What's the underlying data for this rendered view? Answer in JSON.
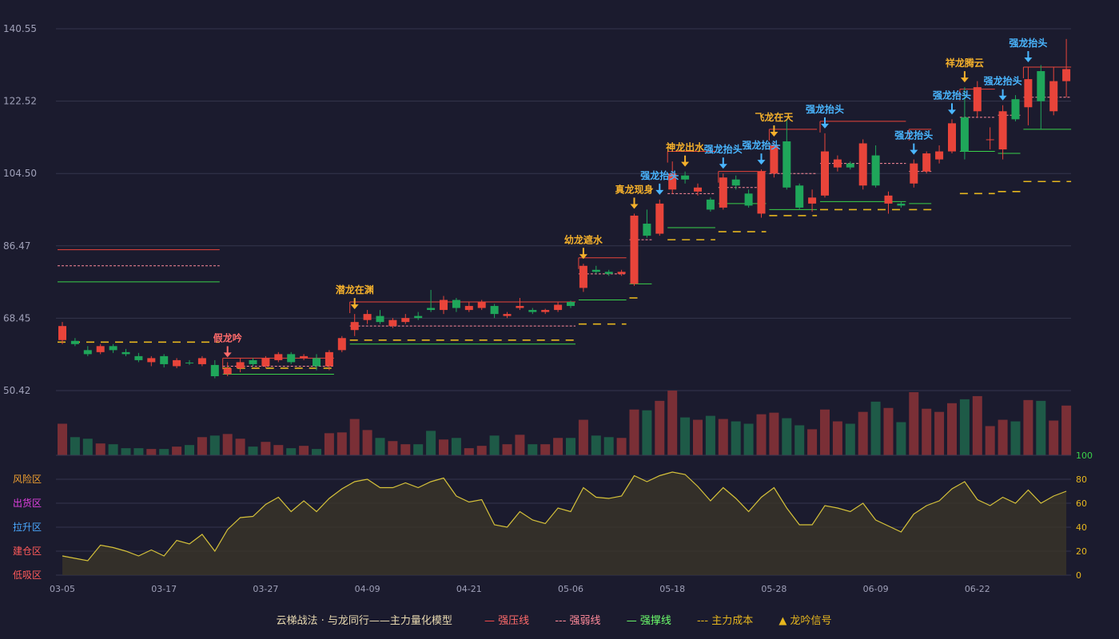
{
  "colors": {
    "background": "#1b1b2e",
    "up": "#e8443a",
    "down": "#1fa65a",
    "upVol": "#7a2f36",
    "downVol": "#1e5a47",
    "grid": "#35364d",
    "axisText": "#9fa0b8",
    "resist": "#e8443a",
    "weak": "#ff8a9a",
    "support": "#3ad14a",
    "cost": "#e6b61e",
    "signalBlue": "#4ab6ff",
    "signalGold": "#f5b12b",
    "signalRed": "#ff6b6b",
    "oscLine": "#d6c23a",
    "oscFill": "#3a3528"
  },
  "legend": {
    "title": "云梯战法 · 与龙同行——主力量化模型",
    "items": [
      {
        "label": "强压线",
        "symbol": "—",
        "color": "#ff4d4d"
      },
      {
        "label": "强弱线",
        "symbol": "---",
        "color": "#ff8a9a"
      },
      {
        "label": "强撑线",
        "symbol": "—",
        "color": "#6cff6c"
      },
      {
        "label": "主力成本",
        "symbol": "---",
        "color": "#e6b61e"
      },
      {
        "label": "龙吟信号",
        "symbol": "▲",
        "color": "#e6b61e"
      }
    ]
  },
  "zones": [
    {
      "label": "风险区",
      "color": "#f0a030"
    },
    {
      "label": "出货区",
      "color": "#e040e0"
    },
    {
      "label": "拉升区",
      "color": "#4aa8ff"
    },
    {
      "label": "建仓区",
      "color": "#ff5a5a"
    },
    {
      "label": "低吸区",
      "color": "#ff5a5a"
    }
  ],
  "chart_data": {
    "type": "candlestick",
    "price_axis": {
      "ticks": [
        "140.55",
        "122.52",
        "104.50",
        "86.47",
        "68.45",
        "50.42"
      ],
      "ylim": [
        50.42,
        140.55
      ]
    },
    "x_axis_ticks": [
      "03-05",
      "03-17",
      "03-27",
      "04-09",
      "04-21",
      "05-06",
      "05-18",
      "05-28",
      "06-09",
      "06-22"
    ],
    "osc_axis": {
      "ticks": [
        "100",
        "80",
        "60",
        "40",
        "20",
        "0"
      ],
      "ylim": [
        0,
        100
      ]
    },
    "candles": [
      [
        63.0,
        66.5,
        62.0,
        67.5,
        1,
        40
      ],
      [
        62.0,
        62.8,
        61.5,
        63.5,
        0,
        23
      ],
      [
        60.5,
        59.5,
        59.0,
        61.5,
        0,
        21
      ],
      [
        60.0,
        61.5,
        59.5,
        62.0,
        1,
        15
      ],
      [
        60.5,
        61.5,
        59.8,
        62.0,
        0,
        14
      ],
      [
        60.0,
        59.5,
        59.0,
        60.8,
        0,
        9
      ],
      [
        59.0,
        58.0,
        57.5,
        59.8,
        0,
        9
      ],
      [
        57.5,
        58.5,
        56.5,
        59.0,
        1,
        8
      ],
      [
        57.0,
        59.0,
        56.2,
        59.5,
        0,
        8
      ],
      [
        56.5,
        58.0,
        56.0,
        58.5,
        1,
        11
      ],
      [
        57.2,
        57.4,
        56.8,
        58.0,
        0,
        13
      ],
      [
        57.0,
        58.5,
        56.5,
        59.0,
        1,
        23
      ],
      [
        54.0,
        56.8,
        53.5,
        58.0,
        0,
        25
      ],
      [
        54.5,
        56.0,
        54.0,
        57.5,
        1,
        27
      ],
      [
        56.0,
        57.5,
        55.0,
        58.5,
        1,
        21
      ],
      [
        57.0,
        58.0,
        56.5,
        58.5,
        0,
        11
      ],
      [
        56.5,
        58.5,
        56.0,
        59.0,
        1,
        17
      ],
      [
        58.0,
        59.5,
        57.5,
        60.0,
        1,
        13
      ],
      [
        57.5,
        59.5,
        57.0,
        60.0,
        0,
        9
      ],
      [
        58.5,
        59.0,
        58.0,
        59.5,
        1,
        12
      ],
      [
        56.5,
        58.5,
        55.5,
        59.5,
        0,
        8
      ],
      [
        56.5,
        60.0,
        55.5,
        60.5,
        1,
        28
      ],
      [
        60.5,
        63.5,
        60.0,
        64.0,
        1,
        29
      ],
      [
        65.5,
        67.5,
        64.0,
        69.5,
        1,
        46
      ],
      [
        68.0,
        69.5,
        67.0,
        70.5,
        1,
        32
      ],
      [
        69.0,
        67.5,
        67.0,
        70.5,
        0,
        22
      ],
      [
        66.5,
        68.0,
        66.0,
        68.5,
        1,
        18
      ],
      [
        67.5,
        68.5,
        67.0,
        69.5,
        1,
        14
      ],
      [
        68.5,
        69.0,
        68.0,
        70.0,
        0,
        14
      ],
      [
        70.5,
        71.0,
        70.0,
        75.5,
        0,
        31
      ],
      [
        70.5,
        73.0,
        69.5,
        74.0,
        1,
        20
      ],
      [
        73.0,
        71.0,
        70.0,
        73.5,
        0,
        22
      ],
      [
        70.5,
        71.5,
        70.0,
        72.5,
        1,
        9
      ],
      [
        71.0,
        72.5,
        70.5,
        73.0,
        1,
        12
      ],
      [
        71.5,
        69.5,
        68.5,
        72.0,
        0,
        25
      ],
      [
        69.0,
        69.5,
        68.5,
        70.0,
        1,
        14
      ],
      [
        71.0,
        71.5,
        70.5,
        73.5,
        1,
        26
      ],
      [
        70.5,
        70.0,
        69.5,
        71.0,
        0,
        14
      ],
      [
        70.0,
        70.5,
        69.5,
        70.8,
        1,
        14
      ],
      [
        70.5,
        71.8,
        70.0,
        72.5,
        1,
        22
      ],
      [
        72.5,
        71.5,
        71.0,
        72.8,
        0,
        22
      ],
      [
        76.0,
        81.5,
        75.0,
        82.0,
        1,
        45
      ],
      [
        80.5,
        80.0,
        79.5,
        81.5,
        0,
        25
      ],
      [
        80.0,
        79.5,
        79.0,
        80.5,
        0,
        23
      ],
      [
        79.5,
        80.0,
        79.0,
        80.5,
        1,
        22
      ],
      [
        77.0,
        94.0,
        76.5,
        94.5,
        1,
        58
      ],
      [
        92.0,
        89.0,
        88.5,
        95.5,
        0,
        57
      ],
      [
        89.5,
        97.0,
        89.0,
        98.0,
        1,
        69
      ],
      [
        100.5,
        104.5,
        99.5,
        107.5,
        1,
        82
      ],
      [
        104.0,
        103.0,
        102.0,
        105.0,
        0,
        48
      ],
      [
        100.0,
        101.0,
        99.0,
        102.0,
        1,
        45
      ],
      [
        98.0,
        95.5,
        95.0,
        98.5,
        0,
        50
      ],
      [
        96.0,
        103.5,
        95.5,
        104.5,
        1,
        46
      ],
      [
        103.0,
        101.5,
        100.5,
        104.0,
        0,
        43
      ],
      [
        99.5,
        96.5,
        96.0,
        100.5,
        0,
        40
      ],
      [
        94.5,
        105.0,
        93.5,
        105.5,
        1,
        52
      ],
      [
        104.5,
        111.5,
        103.5,
        112.5,
        1,
        54
      ],
      [
        112.5,
        101.0,
        100.5,
        118.0,
        0,
        47
      ],
      [
        101.5,
        96.0,
        95.5,
        102.0,
        0,
        38
      ],
      [
        97.0,
        98.5,
        95.0,
        100.5,
        1,
        33
      ],
      [
        99.0,
        110.0,
        98.5,
        114.5,
        1,
        58
      ],
      [
        106.0,
        108.0,
        105.0,
        109.0,
        1,
        43
      ],
      [
        107.0,
        106.0,
        105.5,
        107.5,
        0,
        40
      ],
      [
        101.5,
        112.0,
        100.5,
        113.0,
        1,
        55
      ],
      [
        109.0,
        101.5,
        101.0,
        111.5,
        0,
        68
      ],
      [
        99.0,
        97.0,
        94.5,
        100.0,
        1,
        60
      ],
      [
        97.0,
        96.5,
        96.0,
        97.5,
        0,
        42
      ],
      [
        102.0,
        107.0,
        101.0,
        108.0,
        1,
        80
      ],
      [
        105.0,
        109.5,
        104.5,
        110.0,
        1,
        59
      ],
      [
        108.0,
        110.0,
        107.0,
        111.5,
        1,
        55
      ],
      [
        110.0,
        117.0,
        109.5,
        118.0,
        1,
        66
      ],
      [
        118.5,
        110.0,
        108.0,
        126.0,
        0,
        71
      ],
      [
        120.0,
        126.0,
        118.5,
        127.5,
        1,
        75
      ],
      [
        113.0,
        113.0,
        110.5,
        116.0,
        1,
        37
      ],
      [
        110.5,
        120.0,
        108.0,
        121.5,
        1,
        45
      ],
      [
        123.0,
        118.0,
        117.5,
        124.0,
        0,
        43
      ],
      [
        121.0,
        128.0,
        116.5,
        131.0,
        1,
        70
      ],
      [
        130.0,
        122.5,
        115.5,
        131.5,
        0,
        69
      ],
      [
        120.0,
        127.5,
        119.0,
        131.0,
        1,
        44
      ],
      [
        127.5,
        130.5,
        123.5,
        138.0,
        1,
        63
      ]
    ],
    "volume_scale": [
      0,
      82
    ],
    "levels": [
      {
        "type": "resist",
        "from": 0,
        "to": 12,
        "y": 85.5
      },
      {
        "type": "weak",
        "from": 0,
        "to": 12,
        "y": 81.5
      },
      {
        "type": "support",
        "from": 0,
        "to": 12,
        "y": 77.5
      },
      {
        "type": "cost",
        "from": 0,
        "to": 12,
        "y": 62.5
      },
      {
        "type": "resist",
        "from": 13,
        "to": 21,
        "y": 58.5
      },
      {
        "type": "weak",
        "from": 13,
        "to": 21,
        "y": 56.5
      },
      {
        "type": "support",
        "from": 13,
        "to": 21,
        "y": 54.5
      },
      {
        "type": "cost",
        "from": 13,
        "to": 21,
        "y": 56.0
      },
      {
        "type": "resist",
        "from": 23,
        "to": 40,
        "y": 72.5
      },
      {
        "type": "weak",
        "from": 23,
        "to": 40,
        "y": 66.5
      },
      {
        "type": "support",
        "from": 23,
        "to": 40,
        "y": 62.0
      },
      {
        "type": "cost",
        "from": 23,
        "to": 40,
        "y": 63.0
      },
      {
        "type": "resist",
        "from": 41,
        "to": 44,
        "y": 83.5
      },
      {
        "type": "weak",
        "from": 41,
        "to": 44,
        "y": 79.5
      },
      {
        "type": "support",
        "from": 41,
        "to": 44,
        "y": 73.0
      },
      {
        "type": "cost",
        "from": 41,
        "to": 44,
        "y": 67.0
      },
      {
        "type": "weak",
        "from": 45,
        "to": 46,
        "y": 88.0
      },
      {
        "type": "support",
        "from": 45,
        "to": 46,
        "y": 77.0
      },
      {
        "type": "cost",
        "from": 45,
        "to": 45,
        "y": 73.5
      },
      {
        "type": "resist",
        "from": 48,
        "to": 51,
        "y": 110.0
      },
      {
        "type": "weak",
        "from": 48,
        "to": 51,
        "y": 99.5
      },
      {
        "type": "support",
        "from": 48,
        "to": 51,
        "y": 91.0
      },
      {
        "type": "cost",
        "from": 48,
        "to": 51,
        "y": 88.0
      },
      {
        "type": "resist",
        "from": 52,
        "to": 55,
        "y": 105.0
      },
      {
        "type": "weak",
        "from": 52,
        "to": 55,
        "y": 101.0
      },
      {
        "type": "support",
        "from": 52,
        "to": 55,
        "y": 97.0
      },
      {
        "type": "cost",
        "from": 52,
        "to": 55,
        "y": 90.0
      },
      {
        "type": "resist",
        "from": 56,
        "to": 59,
        "y": 115.5
      },
      {
        "type": "weak",
        "from": 56,
        "to": 59,
        "y": 104.5
      },
      {
        "type": "support",
        "from": 56,
        "to": 59,
        "y": 95.5
      },
      {
        "type": "cost",
        "from": 56,
        "to": 59,
        "y": 94.0
      },
      {
        "type": "resist",
        "from": 60,
        "to": 66,
        "y": 117.5
      },
      {
        "type": "weak",
        "from": 60,
        "to": 66,
        "y": 107.0
      },
      {
        "type": "support",
        "from": 60,
        "to": 66,
        "y": 97.5
      },
      {
        "type": "cost",
        "from": 60,
        "to": 66,
        "y": 95.5
      },
      {
        "type": "resist",
        "from": 67,
        "to": 68,
        "y": 115.5
      },
      {
        "type": "weak",
        "from": 67,
        "to": 68,
        "y": 105.0
      },
      {
        "type": "support",
        "from": 67,
        "to": 68,
        "y": 97.0
      },
      {
        "type": "cost",
        "from": 67,
        "to": 68,
        "y": 95.5
      },
      {
        "type": "resist",
        "from": 71,
        "to": 73,
        "y": 125.5
      },
      {
        "type": "weak",
        "from": 71,
        "to": 73,
        "y": 118.5
      },
      {
        "type": "support",
        "from": 71,
        "to": 73,
        "y": 110.0
      },
      {
        "type": "cost",
        "from": 71,
        "to": 73,
        "y": 99.5
      },
      {
        "type": "weak",
        "from": 74,
        "to": 75,
        "y": 119.0
      },
      {
        "type": "support",
        "from": 74,
        "to": 75,
        "y": 109.5
      },
      {
        "type": "cost",
        "from": 74,
        "to": 75,
        "y": 100.0
      },
      {
        "type": "resist",
        "from": 76,
        "to": 79,
        "y": 131.0
      },
      {
        "type": "weak",
        "from": 76,
        "to": 79,
        "y": 123.5
      },
      {
        "type": "support",
        "from": 76,
        "to": 79,
        "y": 115.5
      },
      {
        "type": "cost",
        "from": 76,
        "to": 79,
        "y": 102.5
      }
    ],
    "signals": [
      {
        "index": 13,
        "label": "假龙吟",
        "kind": "red"
      },
      {
        "index": 23,
        "label": "潜龙在渊",
        "kind": "gold"
      },
      {
        "index": 41,
        "label": "幼龙遮水",
        "kind": "gold"
      },
      {
        "index": 45,
        "label": "真龙现身",
        "kind": "gold"
      },
      {
        "index": 47,
        "label": "强龙抬头",
        "kind": "blue"
      },
      {
        "index": 49,
        "label": "神龙出水",
        "kind": "gold"
      },
      {
        "index": 52,
        "label": "强龙抬头",
        "kind": "blue"
      },
      {
        "index": 55,
        "label": "强龙抬头",
        "kind": "blue"
      },
      {
        "index": 56,
        "label": "飞龙在天",
        "kind": "gold"
      },
      {
        "index": 60,
        "label": "强龙抬头",
        "kind": "blue"
      },
      {
        "index": 67,
        "label": "强龙抬头",
        "kind": "blue"
      },
      {
        "index": 70,
        "label": "强龙抬头",
        "kind": "blue"
      },
      {
        "index": 71,
        "label": "祥龙腾云",
        "kind": "gold"
      },
      {
        "index": 74,
        "label": "强龙抬头",
        "kind": "blue"
      },
      {
        "index": 76,
        "label": "强龙抬头",
        "kind": "blue"
      }
    ],
    "oscillator": [
      16,
      14,
      12,
      25,
      23,
      20,
      16,
      21,
      16,
      29,
      26,
      34,
      20,
      38,
      48,
      49,
      59,
      65,
      53,
      62,
      53,
      64,
      72,
      78,
      80,
      73,
      73,
      77,
      73,
      78,
      81,
      66,
      61,
      63,
      42,
      40,
      53,
      46,
      43,
      56,
      53,
      73,
      65,
      64,
      66,
      83,
      78,
      83,
      86,
      84,
      74,
      62,
      73,
      64,
      53,
      65,
      73,
      56,
      42,
      42,
      58,
      56,
      53,
      60,
      46,
      41,
      36,
      51,
      58,
      62,
      72,
      78,
      63,
      58,
      65,
      60,
      71,
      60,
      66,
      70
    ]
  }
}
